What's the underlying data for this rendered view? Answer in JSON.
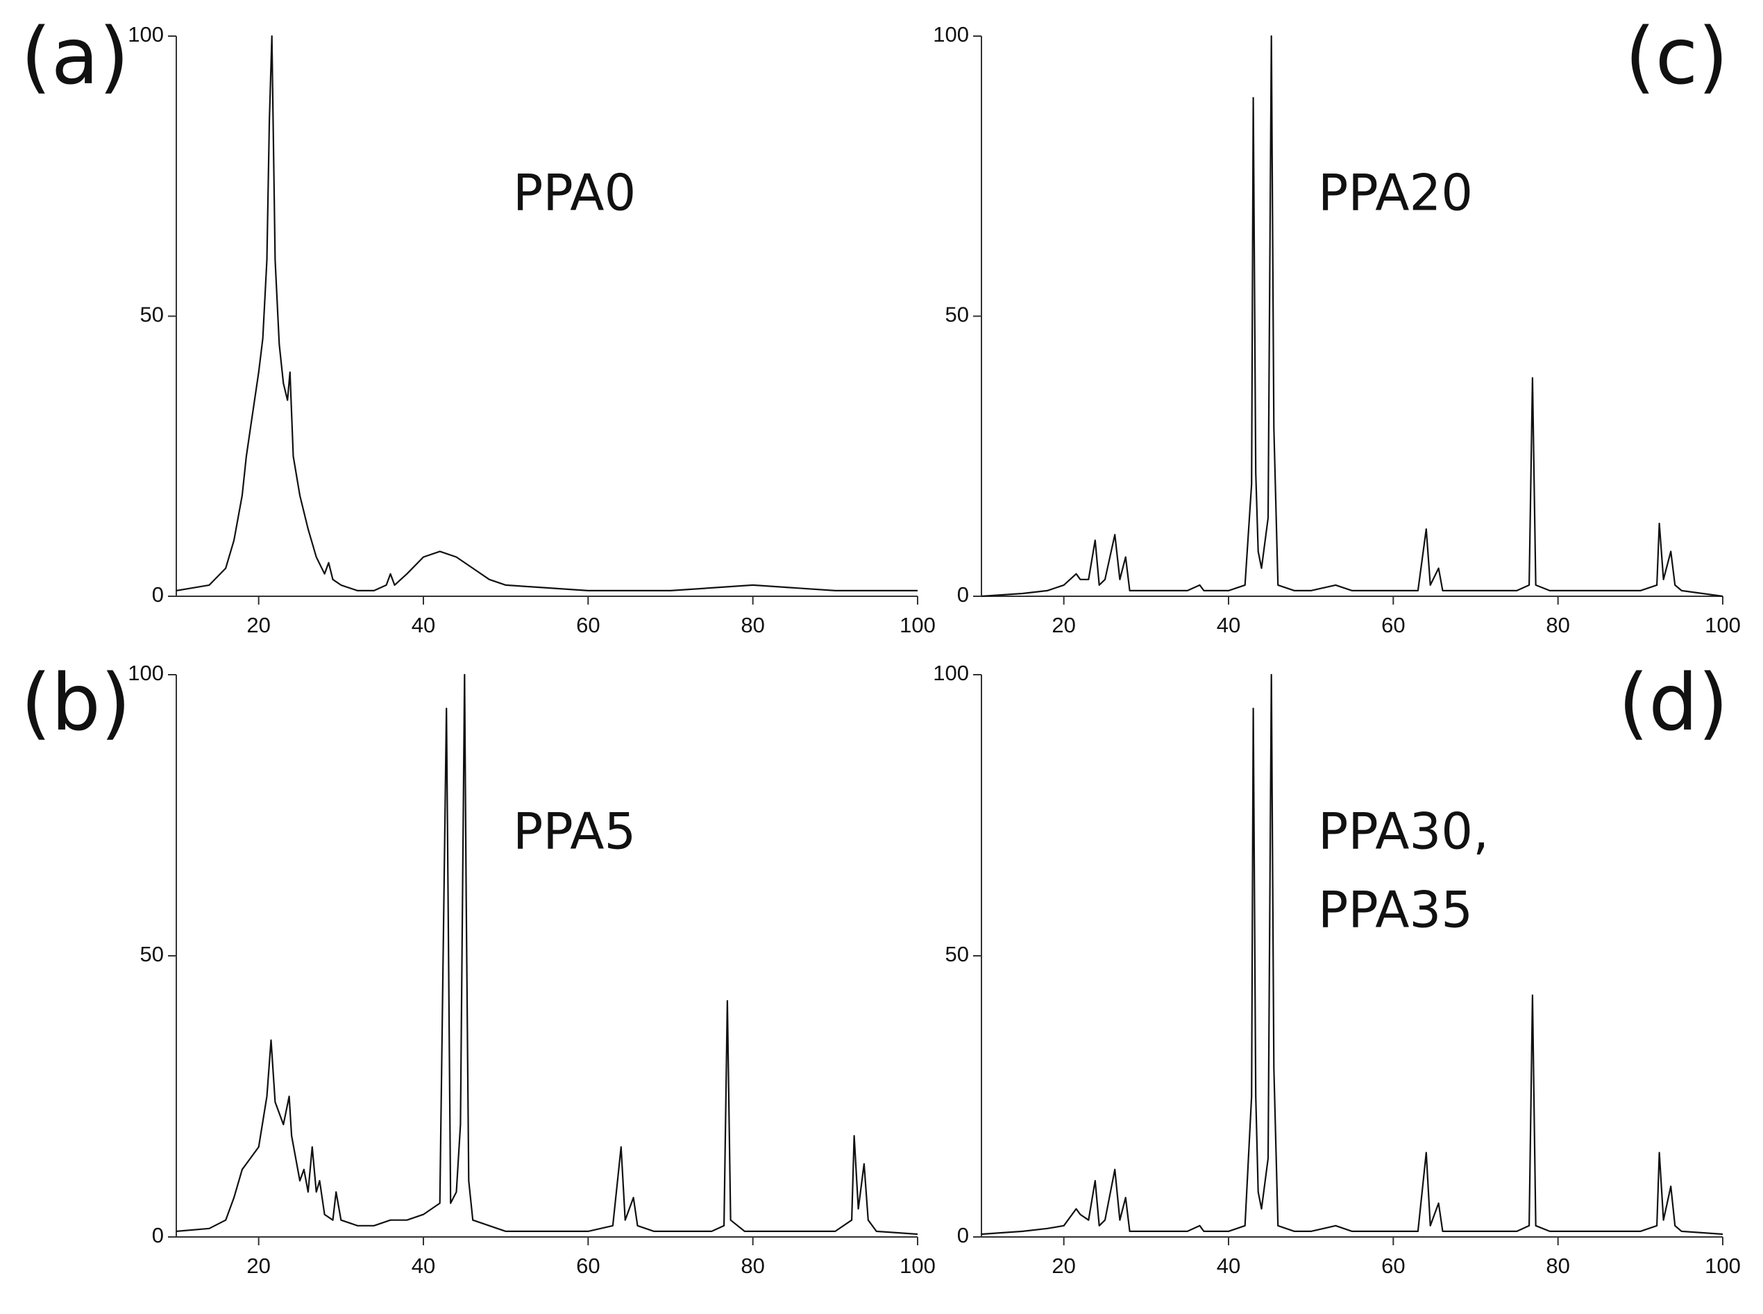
{
  "chart_data": [
    {
      "type": "line",
      "panel_label": "(a)",
      "annotation": [
        "PPA0"
      ],
      "color": "#111111",
      "xlim": [
        10,
        100
      ],
      "xticks": [
        20,
        40,
        60,
        80,
        100
      ],
      "ylim": [
        0,
        100
      ],
      "yticks": [
        0,
        50,
        100
      ],
      "x": [
        10,
        12,
        14,
        16,
        17,
        18,
        18.5,
        19,
        20,
        20.5,
        21,
        21.3,
        21.6,
        22,
        22.5,
        23,
        23.5,
        23.8,
        24.2,
        25,
        26,
        27,
        28,
        28.5,
        29,
        30,
        32,
        34,
        35.5,
        36,
        36.5,
        38,
        40,
        42,
        44,
        46,
        48,
        50,
        55,
        60,
        70,
        80,
        90,
        100
      ],
      "values": [
        1,
        1.5,
        2,
        5,
        10,
        18,
        25,
        30,
        40,
        46,
        60,
        85,
        100,
        60,
        45,
        38,
        35,
        40,
        25,
        18,
        12,
        7,
        4,
        6,
        3,
        2,
        1,
        1,
        2,
        4,
        2,
        4,
        7,
        8,
        7,
        5,
        3,
        2,
        1.5,
        1,
        1,
        2,
        1,
        1
      ]
    },
    {
      "type": "line",
      "panel_label": "(c)",
      "annotation": [
        "PPA20"
      ],
      "color": "#111111",
      "xlim": [
        10,
        100
      ],
      "xticks": [
        20,
        40,
        60,
        80,
        100
      ],
      "ylim": [
        0,
        100
      ],
      "yticks": [
        0,
        50,
        100
      ],
      "x": [
        10,
        15,
        18,
        20,
        21.5,
        22,
        23,
        23.8,
        24.3,
        25,
        26.2,
        26.8,
        27.5,
        28,
        30,
        35,
        36.5,
        37,
        40,
        42,
        42.8,
        43,
        43.3,
        43.6,
        44,
        44.8,
        45.2,
        45.5,
        46,
        48,
        50,
        53,
        55,
        60,
        63,
        64,
        64.5,
        65.5,
        66,
        68,
        75,
        76.5,
        76.9,
        77.3,
        79,
        82,
        85,
        90,
        92,
        92.3,
        92.8,
        93.7,
        94.2,
        95,
        100
      ],
      "values": [
        0,
        0.5,
        1,
        2,
        4,
        3,
        3,
        10,
        2,
        3,
        11,
        3,
        7,
        1,
        1,
        1,
        2,
        1,
        1,
        2,
        20,
        89,
        22,
        8,
        5,
        14,
        100,
        30,
        2,
        1,
        1,
        2,
        1,
        1,
        1,
        12,
        2,
        5,
        1,
        1,
        1,
        2,
        39,
        2,
        1,
        1,
        1,
        1,
        2,
        13,
        3,
        8,
        2,
        1,
        0
      ]
    },
    {
      "type": "line",
      "panel_label": "(b)",
      "annotation": [
        "PPA5"
      ],
      "color": "#111111",
      "xlim": [
        10,
        100
      ],
      "xticks": [
        20,
        40,
        60,
        80,
        100
      ],
      "ylim": [
        0,
        100
      ],
      "yticks": [
        0,
        50,
        100
      ],
      "x": [
        10,
        14,
        16,
        17,
        18,
        19,
        20,
        21,
        21.5,
        22,
        23,
        23.7,
        24,
        25,
        25.5,
        26,
        26.5,
        27,
        27.4,
        28,
        29,
        29.4,
        30,
        32,
        34,
        36,
        38,
        40,
        42,
        42.8,
        43,
        43.3,
        44,
        44.5,
        45,
        45.2,
        45.5,
        46,
        48,
        50,
        55,
        60,
        63,
        64,
        64.5,
        65.5,
        66,
        68,
        70,
        75,
        76.5,
        76.9,
        77.3,
        79,
        85,
        90,
        92,
        92.3,
        92.8,
        93.5,
        94,
        95,
        100
      ],
      "values": [
        1,
        1.5,
        3,
        7,
        12,
        14,
        16,
        25,
        35,
        24,
        20,
        25,
        18,
        10,
        12,
        8,
        16,
        8,
        10,
        4,
        3,
        8,
        3,
        2,
        2,
        3,
        3,
        4,
        6,
        94,
        60,
        6,
        8,
        20,
        100,
        60,
        10,
        3,
        2,
        1,
        1,
        1,
        2,
        16,
        3,
        7,
        2,
        1,
        1,
        1,
        2,
        42,
        3,
        1,
        1,
        1,
        3,
        18,
        5,
        13,
        3,
        1,
        0.5
      ]
    },
    {
      "type": "line",
      "panel_label": "(d)",
      "annotation": [
        "PPA30,",
        "PPA35"
      ],
      "color": "#111111",
      "xlim": [
        10,
        100
      ],
      "xticks": [
        20,
        40,
        60,
        80,
        100
      ],
      "ylim": [
        0,
        100
      ],
      "yticks": [
        0,
        50,
        100
      ],
      "x": [
        10,
        15,
        18,
        20,
        21.5,
        22,
        23,
        23.8,
        24.3,
        25,
        26.2,
        26.8,
        27.5,
        28,
        30,
        35,
        36.5,
        37,
        40,
        42,
        42.8,
        43,
        43.3,
        43.6,
        44,
        44.8,
        45.2,
        45.5,
        46,
        48,
        50,
        53,
        55,
        60,
        63,
        64,
        64.5,
        65.5,
        66,
        68,
        75,
        76.5,
        76.9,
        77.3,
        79,
        82,
        85,
        90,
        92,
        92.3,
        92.8,
        93.7,
        94.2,
        95,
        100
      ],
      "values": [
        0.5,
        1,
        1.5,
        2,
        5,
        4,
        3,
        10,
        2,
        3,
        12,
        3,
        7,
        1,
        1,
        1,
        2,
        1,
        1,
        2,
        25,
        94,
        25,
        8,
        5,
        14,
        100,
        30,
        2,
        1,
        1,
        2,
        1,
        1,
        1,
        15,
        2,
        6,
        1,
        1,
        1,
        2,
        43,
        2,
        1,
        1,
        1,
        1,
        2,
        15,
        3,
        9,
        2,
        1,
        0.5
      ]
    }
  ]
}
